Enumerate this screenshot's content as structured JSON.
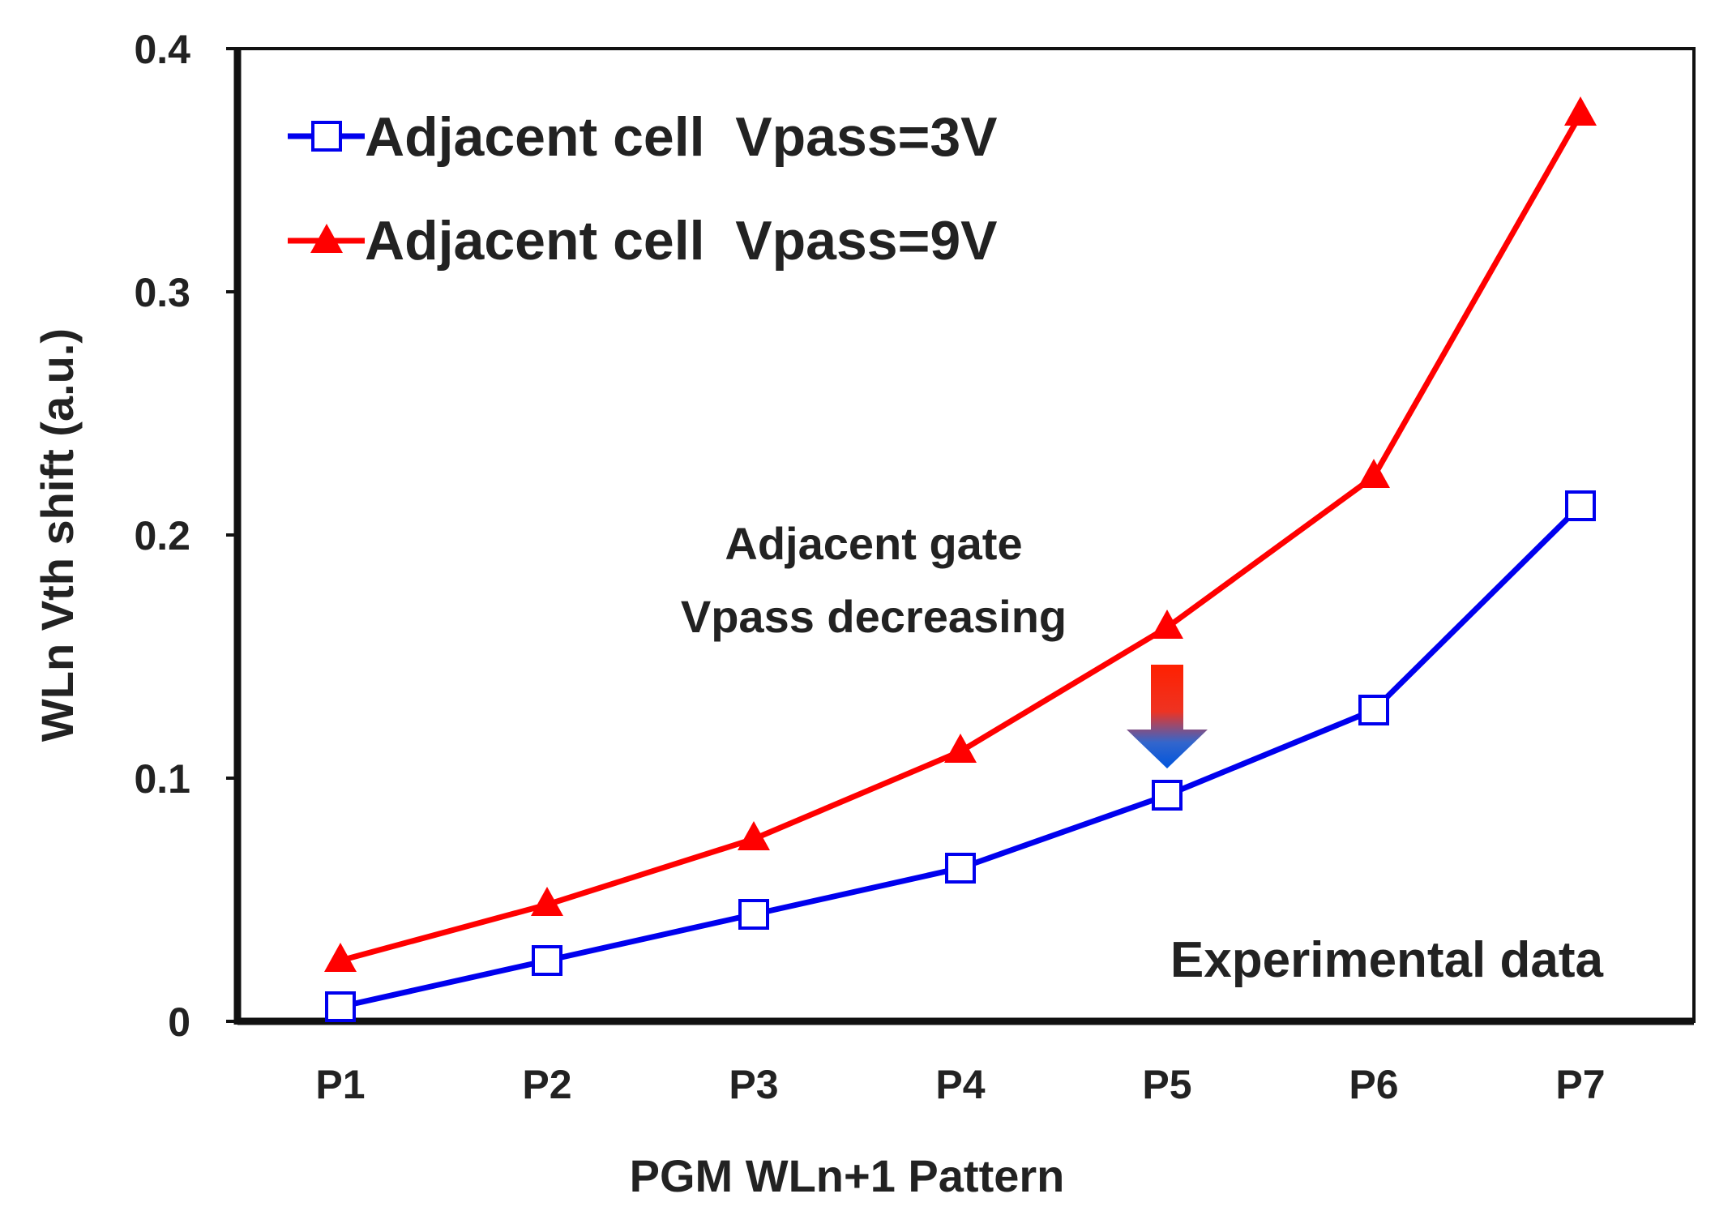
{
  "chart_data": {
    "type": "line",
    "categories": [
      "P1",
      "P2",
      "P3",
      "P4",
      "P5",
      "P6",
      "P7"
    ],
    "series": [
      {
        "name": "Adjacent cell  Vpass=3V",
        "color": "#0000ee",
        "marker": "open-square",
        "values": [
          0.006,
          0.025,
          0.044,
          0.063,
          0.093,
          0.128,
          0.212
        ]
      },
      {
        "name": "Adjacent cell  Vpass=9V",
        "color": "#ff0000",
        "marker": "filled-triangle",
        "values": [
          0.025,
          0.048,
          0.075,
          0.111,
          0.162,
          0.224,
          0.373
        ]
      }
    ],
    "xlabel": "PGM WLn+1 Pattern",
    "ylabel": "WLn Vth shift (a.u.)",
    "ylim": [
      0,
      0.4
    ],
    "yticks": [
      "0",
      "0.1",
      "0.2",
      "0.3",
      "0.4"
    ],
    "grid": false,
    "legend_position": "top-left",
    "annotations": {
      "gate_line1": "Adjacent gate",
      "gate_line2": "Vpass decreasing",
      "experimental": "Experimental data"
    }
  }
}
